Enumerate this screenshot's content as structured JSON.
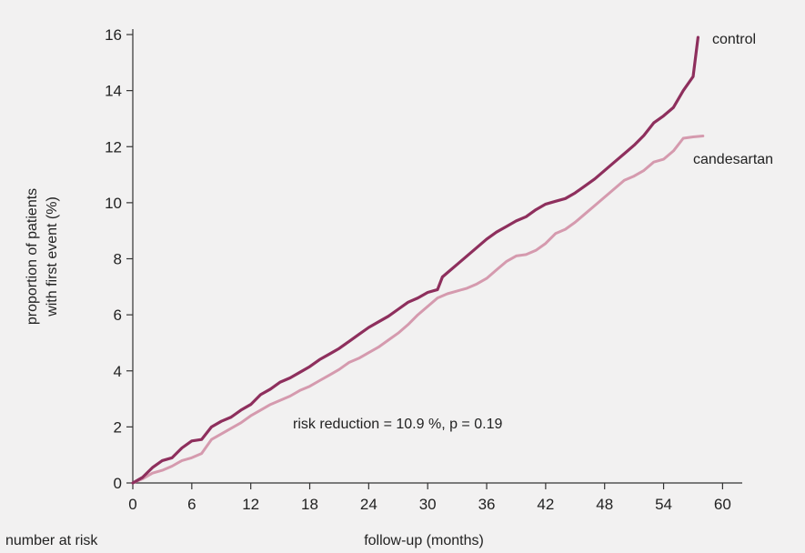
{
  "chart_data": {
    "type": "line",
    "xlabel": "follow-up (months)",
    "ylabel": [
      "proportion of patients",
      "with first event (%)"
    ],
    "xlim": [
      0,
      62
    ],
    "ylim": [
      0,
      16
    ],
    "xticks": [
      0,
      6,
      12,
      18,
      24,
      30,
      36,
      42,
      48,
      54,
      60
    ],
    "yticks": [
      0,
      2,
      4,
      6,
      8,
      10,
      12,
      14,
      16
    ],
    "grid": false,
    "annotation": "risk reduction = 10.9 %, p = 0.19",
    "footer_label": "number at risk",
    "colors": {
      "control": "#8e2f5d",
      "candesartan": "#d59aae",
      "axis": "#333333",
      "background": "#f2f1f1"
    },
    "series": [
      {
        "name": "control",
        "points": [
          [
            0,
            0
          ],
          [
            1,
            0.2
          ],
          [
            2,
            0.55
          ],
          [
            3,
            0.8
          ],
          [
            4,
            0.9
          ],
          [
            5,
            1.25
          ],
          [
            6,
            1.5
          ],
          [
            7,
            1.55
          ],
          [
            8,
            2.0
          ],
          [
            9,
            2.2
          ],
          [
            10,
            2.35
          ],
          [
            11,
            2.6
          ],
          [
            12,
            2.8
          ],
          [
            13,
            3.15
          ],
          [
            14,
            3.35
          ],
          [
            15,
            3.6
          ],
          [
            16,
            3.75
          ],
          [
            17,
            3.95
          ],
          [
            18,
            4.15
          ],
          [
            19,
            4.4
          ],
          [
            20,
            4.6
          ],
          [
            21,
            4.8
          ],
          [
            22,
            5.05
          ],
          [
            23,
            5.3
          ],
          [
            24,
            5.55
          ],
          [
            25,
            5.75
          ],
          [
            26,
            5.95
          ],
          [
            27,
            6.2
          ],
          [
            28,
            6.45
          ],
          [
            29,
            6.6
          ],
          [
            30,
            6.8
          ],
          [
            31,
            6.9
          ],
          [
            31.5,
            7.35
          ],
          [
            32,
            7.5
          ],
          [
            33,
            7.8
          ],
          [
            34,
            8.1
          ],
          [
            35,
            8.4
          ],
          [
            36,
            8.7
          ],
          [
            37,
            8.95
          ],
          [
            38,
            9.15
          ],
          [
            39,
            9.35
          ],
          [
            40,
            9.5
          ],
          [
            41,
            9.75
          ],
          [
            42,
            9.95
          ],
          [
            43,
            10.05
          ],
          [
            44,
            10.15
          ],
          [
            45,
            10.35
          ],
          [
            46,
            10.6
          ],
          [
            47,
            10.85
          ],
          [
            48,
            11.15
          ],
          [
            49,
            11.45
          ],
          [
            50,
            11.75
          ],
          [
            51,
            12.05
          ],
          [
            52,
            12.4
          ],
          [
            53,
            12.85
          ],
          [
            54,
            13.1
          ],
          [
            55,
            13.4
          ],
          [
            56,
            14.0
          ],
          [
            57,
            14.5
          ],
          [
            57.5,
            15.9
          ]
        ]
      },
      {
        "name": "candesartan",
        "points": [
          [
            0,
            0
          ],
          [
            1,
            0.15
          ],
          [
            2,
            0.35
          ],
          [
            3,
            0.45
          ],
          [
            4,
            0.6
          ],
          [
            5,
            0.8
          ],
          [
            6,
            0.9
          ],
          [
            7,
            1.05
          ],
          [
            8,
            1.55
          ],
          [
            9,
            1.75
          ],
          [
            10,
            1.95
          ],
          [
            11,
            2.15
          ],
          [
            12,
            2.4
          ],
          [
            13,
            2.6
          ],
          [
            14,
            2.8
          ],
          [
            15,
            2.95
          ],
          [
            16,
            3.1
          ],
          [
            17,
            3.3
          ],
          [
            18,
            3.45
          ],
          [
            19,
            3.65
          ],
          [
            20,
            3.85
          ],
          [
            21,
            4.05
          ],
          [
            22,
            4.3
          ],
          [
            23,
            4.45
          ],
          [
            24,
            4.65
          ],
          [
            25,
            4.85
          ],
          [
            26,
            5.1
          ],
          [
            27,
            5.35
          ],
          [
            28,
            5.65
          ],
          [
            29,
            6.0
          ],
          [
            30,
            6.3
          ],
          [
            31,
            6.6
          ],
          [
            32,
            6.75
          ],
          [
            33,
            6.85
          ],
          [
            34,
            6.95
          ],
          [
            35,
            7.1
          ],
          [
            36,
            7.3
          ],
          [
            37,
            7.6
          ],
          [
            38,
            7.9
          ],
          [
            39,
            8.1
          ],
          [
            40,
            8.15
          ],
          [
            41,
            8.3
          ],
          [
            42,
            8.55
          ],
          [
            43,
            8.9
          ],
          [
            44,
            9.05
          ],
          [
            45,
            9.3
          ],
          [
            46,
            9.6
          ],
          [
            47,
            9.9
          ],
          [
            48,
            10.2
          ],
          [
            49,
            10.5
          ],
          [
            50,
            10.8
          ],
          [
            51,
            10.95
          ],
          [
            52,
            11.15
          ],
          [
            53,
            11.45
          ],
          [
            54,
            11.55
          ],
          [
            55,
            11.85
          ],
          [
            56,
            12.3
          ],
          [
            57,
            12.35
          ],
          [
            58,
            12.38
          ]
        ]
      }
    ]
  }
}
